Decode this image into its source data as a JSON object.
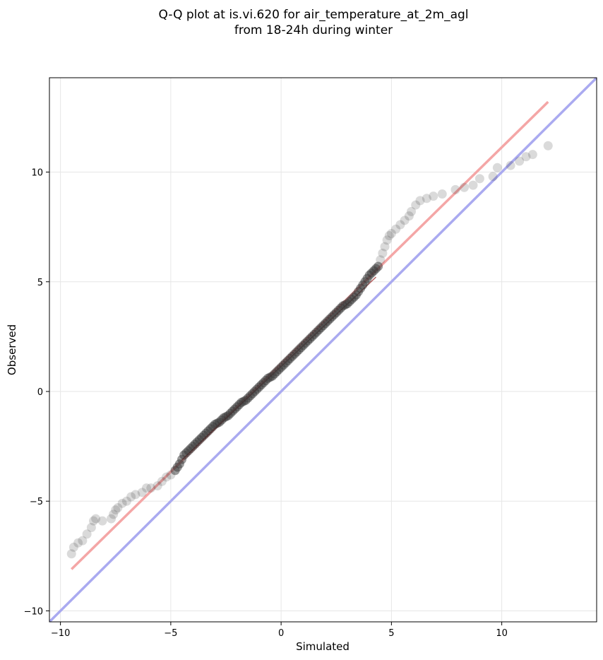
{
  "chart_data": {
    "type": "scatter",
    "title_line1": "Q-Q plot at is.vi.620 for air_temperature_at_2m_agl",
    "title_line2": "from 18-24h during winter",
    "xlabel": "Simulated",
    "ylabel": "Observed",
    "xlim": [
      -10.5,
      14.3
    ],
    "ylim": [
      -10.5,
      14.3
    ],
    "xticks": [
      -10,
      -5,
      0,
      5,
      10
    ],
    "yticks": [
      -10,
      -5,
      0,
      5,
      10
    ],
    "tick_labels": [
      "−10",
      "−5",
      "0",
      "5",
      "10"
    ],
    "grid": true,
    "colors": {
      "points": "#333333",
      "fit_line": "#f4a6a6",
      "identity_line": "#aaaaf0",
      "fit_core": "#8b0000"
    },
    "fit_line": {
      "x": [
        -9.5,
        12.1
      ],
      "y": [
        -8.1,
        13.2
      ]
    },
    "identity_line": {
      "x": [
        -10.5,
        14.3
      ],
      "y": [
        -10.5,
        14.3
      ]
    },
    "points": {
      "x": [
        -9.5,
        -9.4,
        -9.2,
        -9.0,
        -8.8,
        -8.6,
        -8.5,
        -8.4,
        -8.1,
        -7.7,
        -7.6,
        -7.5,
        -7.4,
        -7.2,
        -7.0,
        -6.8,
        -6.6,
        -6.3,
        -6.1,
        -5.9,
        -5.6,
        -5.4,
        -5.2,
        -5.0,
        -4.8,
        -4.6,
        -4.4,
        -4.2,
        -4.0,
        -3.8,
        -3.6,
        -3.4,
        -3.2,
        -3.0,
        -2.8,
        -2.6,
        -2.4,
        -2.2,
        -2.0,
        -1.8,
        -1.6,
        -1.4,
        -1.2,
        -1.0,
        -0.8,
        -0.6,
        -0.4,
        -0.2,
        0.0,
        0.2,
        0.4,
        0.6,
        0.8,
        1.0,
        1.2,
        1.4,
        1.6,
        1.8,
        2.0,
        2.2,
        2.4,
        2.6,
        2.8,
        3.0,
        3.2,
        3.4,
        3.6,
        3.8,
        4.0,
        4.2,
        4.4,
        4.5,
        4.6,
        4.7,
        4.8,
        4.9,
        5.0,
        5.2,
        5.4,
        5.6,
        5.8,
        5.9,
        6.1,
        6.3,
        6.6,
        6.9,
        7.3,
        7.9,
        8.3,
        8.7,
        9.0,
        9.6,
        9.8,
        10.4,
        10.8,
        11.1,
        11.4,
        12.1
      ],
      "y": [
        -7.4,
        -7.1,
        -6.9,
        -6.8,
        -6.5,
        -6.2,
        -5.9,
        -5.8,
        -5.9,
        -5.8,
        -5.6,
        -5.4,
        -5.3,
        -5.1,
        -5.0,
        -4.8,
        -4.7,
        -4.6,
        -4.4,
        -4.4,
        -4.3,
        -4.1,
        -3.9,
        -3.8,
        -3.6,
        -3.3,
        -2.9,
        -2.7,
        -2.5,
        -2.3,
        -2.1,
        -1.9,
        -1.7,
        -1.5,
        -1.4,
        -1.2,
        -1.1,
        -0.9,
        -0.7,
        -0.5,
        -0.4,
        -0.2,
        0.0,
        0.2,
        0.4,
        0.6,
        0.7,
        0.9,
        1.1,
        1.3,
        1.5,
        1.7,
        1.9,
        2.1,
        2.3,
        2.5,
        2.7,
        2.9,
        3.1,
        3.3,
        3.5,
        3.7,
        3.9,
        4.0,
        4.2,
        4.4,
        4.7,
        5.0,
        5.3,
        5.5,
        5.7,
        6.0,
        6.3,
        6.6,
        6.9,
        7.1,
        7.2,
        7.4,
        7.6,
        7.8,
        8.0,
        8.2,
        8.5,
        8.7,
        8.8,
        8.9,
        9.0,
        9.2,
        9.3,
        9.4,
        9.7,
        9.8,
        10.2,
        10.3,
        10.5,
        10.7,
        10.8,
        11.2
      ]
    }
  }
}
